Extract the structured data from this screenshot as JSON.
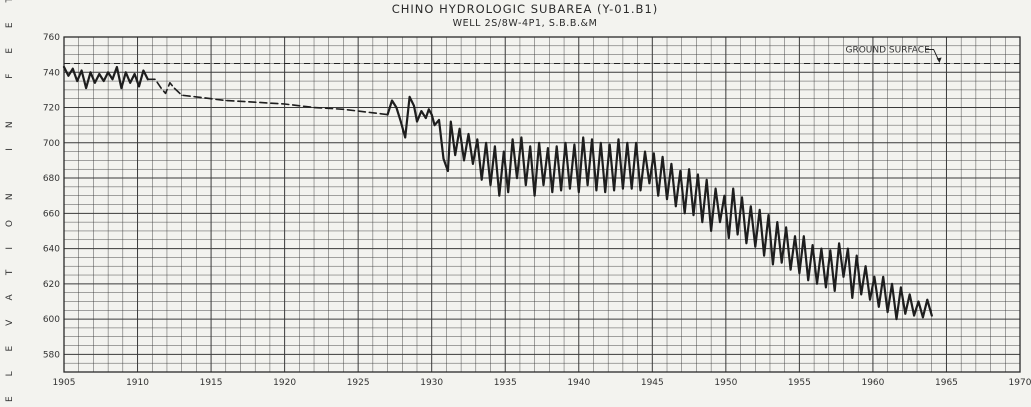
{
  "chart_data": {
    "type": "line",
    "title": "CHINO HYDROLOGIC SUBAREA (Y-01.B1)",
    "subtitle": "WELL 2S/8W-4P1, S.B.B.&M",
    "ylabel": "ELEVATION IN FEET",
    "xlabel": "",
    "xlim": [
      1905,
      1970
    ],
    "ylim": [
      570,
      760
    ],
    "x_ticks": [
      "1905",
      "1910",
      "1915",
      "1920",
      "1925",
      "1930",
      "1935",
      "1940",
      "1945",
      "1950",
      "1955",
      "1960",
      "1965",
      "1970"
    ],
    "y_ticks": [
      "760",
      "740",
      "720",
      "700",
      "680",
      "660",
      "640",
      "620",
      "600",
      "580"
    ],
    "grid": true,
    "reference_lines": [
      {
        "label": "GROUND SURFACE",
        "y": 745,
        "style": "dashed"
      }
    ],
    "series": [
      {
        "style": "solid",
        "points": [
          [
            1905.0,
            743
          ],
          [
            1905.3,
            738
          ],
          [
            1905.6,
            742
          ],
          [
            1905.9,
            735
          ],
          [
            1906.2,
            741
          ],
          [
            1906.5,
            731
          ],
          [
            1906.8,
            740
          ],
          [
            1907.1,
            734
          ],
          [
            1907.4,
            739
          ],
          [
            1907.7,
            735
          ],
          [
            1908.0,
            740
          ],
          [
            1908.3,
            736
          ],
          [
            1908.6,
            743
          ],
          [
            1908.9,
            731
          ],
          [
            1909.2,
            740
          ],
          [
            1909.5,
            734
          ],
          [
            1909.8,
            739
          ],
          [
            1910.1,
            732
          ],
          [
            1910.4,
            741
          ],
          [
            1910.7,
            736
          ]
        ]
      },
      {
        "style": "dashed",
        "points": [
          [
            1910.7,
            736
          ],
          [
            1911.2,
            736
          ],
          [
            1911.6,
            731
          ],
          [
            1911.9,
            728
          ],
          [
            1912.2,
            734
          ],
          [
            1912.5,
            731
          ],
          [
            1913.0,
            727
          ],
          [
            1914.0,
            726
          ],
          [
            1916.0,
            724
          ],
          [
            1918.0,
            723
          ],
          [
            1920.0,
            722
          ],
          [
            1922.0,
            720
          ],
          [
            1924.0,
            719
          ],
          [
            1926.0,
            717
          ],
          [
            1927.0,
            716
          ]
        ]
      },
      {
        "style": "solid",
        "points": [
          [
            1927.0,
            716
          ],
          [
            1927.3,
            724
          ],
          [
            1927.6,
            720
          ],
          [
            1927.9,
            712
          ],
          [
            1928.2,
            703
          ],
          [
            1928.5,
            726
          ],
          [
            1928.8,
            721
          ],
          [
            1929.0,
            712
          ],
          [
            1929.3,
            718
          ],
          [
            1929.6,
            714
          ],
          [
            1929.8,
            719
          ],
          [
            1930.0,
            716
          ],
          [
            1930.2,
            710
          ],
          [
            1930.5,
            713
          ],
          [
            1930.8,
            691
          ],
          [
            1931.1,
            684
          ],
          [
            1931.3,
            712
          ],
          [
            1931.6,
            693
          ],
          [
            1931.9,
            708
          ],
          [
            1932.2,
            690
          ],
          [
            1932.5,
            705
          ],
          [
            1932.8,
            688
          ],
          [
            1933.1,
            702
          ],
          [
            1933.4,
            679
          ],
          [
            1933.7,
            700
          ],
          [
            1934.0,
            676
          ],
          [
            1934.3,
            698
          ],
          [
            1934.6,
            670
          ],
          [
            1934.9,
            695
          ],
          [
            1935.2,
            672
          ],
          [
            1935.5,
            702
          ],
          [
            1935.8,
            680
          ],
          [
            1936.1,
            703
          ],
          [
            1936.4,
            676
          ],
          [
            1936.7,
            698
          ],
          [
            1937.0,
            670
          ],
          [
            1937.3,
            700
          ],
          [
            1937.6,
            676
          ],
          [
            1937.9,
            697
          ],
          [
            1938.2,
            672
          ],
          [
            1938.5,
            698
          ],
          [
            1938.8,
            673
          ],
          [
            1939.1,
            700
          ],
          [
            1939.4,
            674
          ],
          [
            1939.7,
            699
          ],
          [
            1940.0,
            672
          ],
          [
            1940.3,
            703
          ],
          [
            1940.6,
            676
          ],
          [
            1940.9,
            702
          ],
          [
            1941.2,
            673
          ],
          [
            1941.5,
            700
          ],
          [
            1941.8,
            672
          ],
          [
            1942.1,
            699
          ],
          [
            1942.4,
            673
          ],
          [
            1942.7,
            702
          ],
          [
            1943.0,
            674
          ],
          [
            1943.3,
            700
          ],
          [
            1943.6,
            674
          ],
          [
            1943.9,
            700
          ],
          [
            1944.2,
            673
          ],
          [
            1944.5,
            695
          ],
          [
            1944.8,
            677
          ],
          [
            1945.1,
            694
          ],
          [
            1945.4,
            670
          ],
          [
            1945.7,
            692
          ],
          [
            1946.0,
            668
          ],
          [
            1946.3,
            688
          ],
          [
            1946.6,
            664
          ],
          [
            1946.9,
            684
          ],
          [
            1947.2,
            660
          ],
          [
            1947.5,
            685
          ],
          [
            1947.8,
            659
          ],
          [
            1948.1,
            682
          ],
          [
            1948.4,
            655
          ],
          [
            1948.7,
            679
          ],
          [
            1949.0,
            650
          ],
          [
            1949.3,
            674
          ],
          [
            1949.6,
            655
          ],
          [
            1949.9,
            670
          ],
          [
            1950.2,
            646
          ],
          [
            1950.5,
            674
          ],
          [
            1950.8,
            648
          ],
          [
            1951.1,
            669
          ],
          [
            1951.4,
            643
          ],
          [
            1951.7,
            664
          ],
          [
            1952.0,
            641
          ],
          [
            1952.3,
            662
          ],
          [
            1952.6,
            636
          ],
          [
            1952.9,
            659
          ],
          [
            1953.2,
            631
          ],
          [
            1953.5,
            655
          ],
          [
            1953.8,
            632
          ],
          [
            1954.1,
            652
          ],
          [
            1954.4,
            628
          ],
          [
            1954.7,
            647
          ],
          [
            1955.0,
            626
          ],
          [
            1955.3,
            647
          ],
          [
            1955.6,
            622
          ],
          [
            1955.9,
            642
          ],
          [
            1956.2,
            620
          ],
          [
            1956.5,
            640
          ],
          [
            1956.8,
            618
          ],
          [
            1957.1,
            639
          ],
          [
            1957.4,
            616
          ],
          [
            1957.7,
            643
          ],
          [
            1958.0,
            624
          ],
          [
            1958.3,
            640
          ],
          [
            1958.6,
            612
          ],
          [
            1958.9,
            636
          ],
          [
            1959.2,
            614
          ],
          [
            1959.5,
            630
          ],
          [
            1959.8,
            611
          ],
          [
            1960.1,
            624
          ],
          [
            1960.4,
            607
          ],
          [
            1960.7,
            624
          ],
          [
            1961.0,
            604
          ],
          [
            1961.3,
            620
          ],
          [
            1961.6,
            600
          ],
          [
            1961.9,
            618
          ],
          [
            1962.2,
            603
          ],
          [
            1962.5,
            614
          ],
          [
            1962.8,
            602
          ],
          [
            1963.1,
            610
          ],
          [
            1963.4,
            601
          ],
          [
            1963.7,
            611
          ],
          [
            1964.0,
            602
          ]
        ]
      }
    ]
  }
}
